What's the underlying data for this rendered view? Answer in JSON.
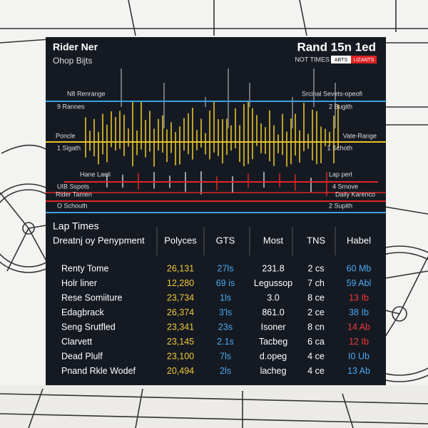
{
  "header": {
    "title": "Rider Ner",
    "subtitle": "Ohop Bijts",
    "right_title": "Rand 15n 1ed",
    "right_subtitle": "NOT TIMES",
    "badges": [
      "ABTS",
      "LIZANTS"
    ]
  },
  "chart_labels": {
    "left": [
      "N8 Renrange",
      "9 Rannes",
      "Poncle",
      "1 Sigath",
      "Hane Laeli",
      "UIB Sspots",
      "Rider Tamen",
      "O Schouth"
    ],
    "right": [
      "Srcinal Sevets-opeofi",
      "2 Bugith",
      "Vate-Range",
      "1 Schoth",
      "Lap pert",
      "4 Srnove",
      "Daily Karenco",
      "2 Supith"
    ]
  },
  "table": {
    "title": "Lap Times",
    "header": [
      "Dreatnj oy Penypment",
      "Polyces",
      "GTS",
      "Most",
      "TNS",
      "Habel"
    ],
    "rows": [
      [
        "Renty Tome",
        "26,131",
        "27ls",
        "231.8",
        "2 cs",
        "60 Mb"
      ],
      [
        "Holr liner",
        "12,280",
        "69 is",
        "Legussop",
        "7 ch",
        "59 Abl"
      ],
      [
        "Rese Somiiture",
        "23,734",
        "1ls",
        "3.0",
        "8 ce",
        "13 Ib"
      ],
      [
        "Edagbrack",
        "26,374",
        "3'ls",
        "861.0",
        "2 ce",
        "38 Ib"
      ],
      [
        "Seng Srutfled",
        "23,341",
        "23s",
        "Isoner",
        "8 cn",
        "14 Ab"
      ],
      [
        "Clarvett",
        "23,145",
        "2.1s",
        "Tacbeg",
        "6 ca",
        "12 Ib"
      ],
      [
        "Dead Plulf",
        "23,100",
        "7ls",
        "d.opeg",
        "4 ce",
        "I0 Ub"
      ],
      [
        "Pnand Rkle Wodef",
        "20,494",
        "2ls",
        "lacheg",
        "4 ce",
        "13 Ab"
      ]
    ]
  }
}
